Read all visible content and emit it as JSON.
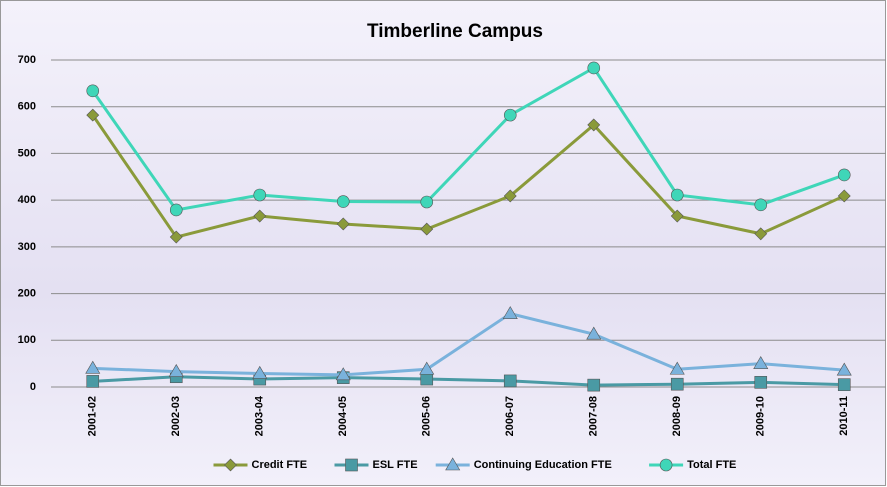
{
  "chart_data": {
    "type": "line",
    "title": "Timberline Campus",
    "categories": [
      "2001-02",
      "2002-03",
      "2003-04",
      "2004-05",
      "2005-06",
      "2006-07",
      "2007-08",
      "2008-09",
      "2009-10",
      "2010-11"
    ],
    "series": [
      {
        "name": "Credit FTE",
        "color": "#8a9a3a",
        "marker": "diamond",
        "values": [
          582,
          321,
          366,
          349,
          338,
          409,
          561,
          366,
          328,
          409
        ]
      },
      {
        "name": "ESL FTE",
        "color": "#4a9aa4",
        "marker": "square",
        "values": [
          12,
          22,
          17,
          20,
          17,
          13,
          4,
          6,
          10,
          5
        ]
      },
      {
        "name": "Continuing Education FTE",
        "color": "#7ab2dc",
        "marker": "triangle",
        "values": [
          40,
          33,
          29,
          26,
          38,
          157,
          113,
          38,
          50,
          36
        ]
      },
      {
        "name": "Total FTE",
        "color": "#3fd6b8",
        "marker": "circle",
        "values": [
          634,
          379,
          411,
          397,
          396,
          582,
          683,
          411,
          390,
          454
        ]
      }
    ],
    "ylim": [
      0,
      700
    ],
    "yticks": [
      0,
      100,
      200,
      300,
      400,
      500,
      600,
      700
    ],
    "grid": true,
    "legend": "bottom"
  }
}
